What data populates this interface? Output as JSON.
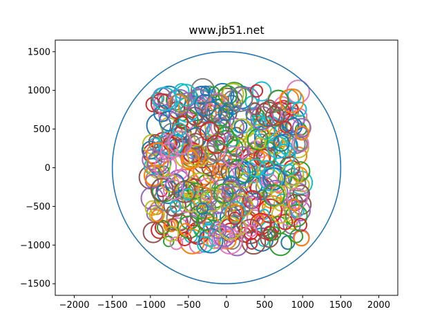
{
  "chart_data": {
    "type": "scatter",
    "title": "www.jb51.net",
    "xlabel": "",
    "ylabel": "",
    "xlim": [
      -2250,
      2250
    ],
    "ylim": [
      -1650,
      1650
    ],
    "x_ticks": [
      "−2000",
      "−1500",
      "−1000",
      "−500",
      "0",
      "500",
      "1000",
      "1500",
      "2000"
    ],
    "x_tick_values": [
      -2000,
      -1500,
      -1000,
      -500,
      0,
      500,
      1000,
      1500,
      2000
    ],
    "y_ticks": [
      "−1500",
      "−1000",
      "−500",
      "0",
      "500",
      "1000",
      "1500"
    ],
    "y_tick_values": [
      -1500,
      -1000,
      -500,
      0,
      500,
      1000,
      1500
    ],
    "grid": false,
    "aspect": "equal",
    "colors": [
      "#1f77b4",
      "#ff7f0e",
      "#2ca02c",
      "#d62728",
      "#9467bd",
      "#8c564b",
      "#e377c2",
      "#7f7f7f",
      "#bcbd22",
      "#17becf"
    ],
    "big_circle": {
      "cx": 0,
      "cy": 0,
      "r": 1500,
      "color": "#1f77b4"
    },
    "small_circles": {
      "description_of_distribution": "uniform random centers",
      "count": 500,
      "center_range": [
        -1000,
        1000
      ],
      "radius_range": [
        60,
        160
      ]
    }
  }
}
